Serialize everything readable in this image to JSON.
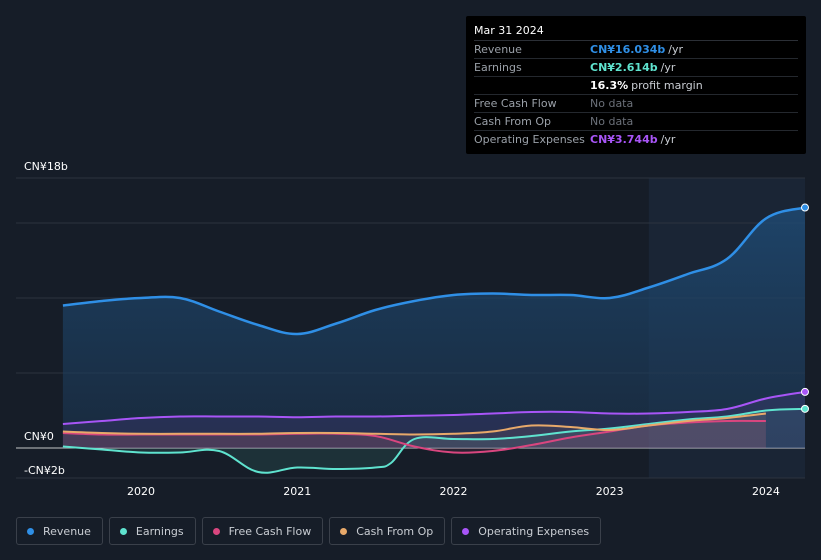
{
  "tooltip": {
    "date": "Mar 31 2024",
    "rows": [
      {
        "label": "Revenue",
        "value": "CN¥16.034b",
        "unit": "/yr",
        "color": "#2f8fe6"
      },
      {
        "label": "Earnings",
        "value": "CN¥2.614b",
        "unit": "/yr",
        "color": "#5fe3cf"
      },
      {
        "label": "",
        "value": "16.3%",
        "unit": "profit margin",
        "color": "#ffffff"
      },
      {
        "label": "Free Cash Flow",
        "value": "No data",
        "unit": "",
        "color": "#6b7079"
      },
      {
        "label": "Cash From Op",
        "value": "No data",
        "unit": "",
        "color": "#6b7079"
      },
      {
        "label": "Operating Expenses",
        "value": "CN¥3.744b",
        "unit": "/yr",
        "color": "#a855f7"
      }
    ]
  },
  "legend": [
    {
      "label": "Revenue",
      "color": "#2f8fe6"
    },
    {
      "label": "Earnings",
      "color": "#5fe3cf"
    },
    {
      "label": "Free Cash Flow",
      "color": "#d9467f"
    },
    {
      "label": "Cash From Op",
      "color": "#e8a96a"
    },
    {
      "label": "Operating Expenses",
      "color": "#a855f7"
    }
  ],
  "chart_data": {
    "type": "line",
    "ylim": [
      -2,
      18
    ],
    "y_tick_labels": [
      {
        "value": 18,
        "label": "CN¥18b"
      },
      {
        "value": 0,
        "label": "CN¥0"
      },
      {
        "value": -2,
        "label": "-CN¥2b"
      }
    ],
    "x_tick_labels": [
      {
        "value": 2020.0,
        "label": "2020"
      },
      {
        "value": 2021.0,
        "label": "2021"
      },
      {
        "value": 2022.0,
        "label": "2022"
      },
      {
        "value": 2023.0,
        "label": "2023"
      },
      {
        "value": 2024.0,
        "label": "2024"
      }
    ],
    "xlim": [
      2019.2,
      2024.25
    ],
    "highlight_start": 2023.25,
    "series": [
      {
        "name": "Revenue",
        "color": "#2f8fe6",
        "area": true,
        "x": [
          2019.5,
          2019.75,
          2020.0,
          2020.25,
          2020.5,
          2020.75,
          2021.0,
          2021.25,
          2021.5,
          2021.75,
          2022.0,
          2022.25,
          2022.5,
          2022.75,
          2023.0,
          2023.25,
          2023.5,
          2023.75,
          2024.0,
          2024.25
        ],
        "y": [
          9.5,
          9.8,
          10.0,
          10.0,
          9.1,
          8.2,
          7.6,
          8.3,
          9.2,
          9.8,
          10.2,
          10.3,
          10.2,
          10.2,
          10.0,
          10.7,
          11.6,
          12.6,
          15.3,
          16.03
        ]
      },
      {
        "name": "Earnings",
        "color": "#5fe3cf",
        "x": [
          2019.5,
          2019.75,
          2020.0,
          2020.25,
          2020.5,
          2020.75,
          2021.0,
          2021.25,
          2021.5,
          2021.6,
          2021.75,
          2022.0,
          2022.25,
          2022.5,
          2022.75,
          2023.0,
          2023.25,
          2023.5,
          2023.75,
          2024.0,
          2024.25
        ],
        "y": [
          0.1,
          -0.1,
          -0.3,
          -0.3,
          -0.2,
          -1.6,
          -1.3,
          -1.4,
          -1.3,
          -1.0,
          0.6,
          0.6,
          0.6,
          0.8,
          1.1,
          1.3,
          1.6,
          1.9,
          2.1,
          2.5,
          2.61
        ]
      },
      {
        "name": "Free Cash Flow",
        "color": "#d9467f",
        "x": [
          2019.5,
          2019.75,
          2020.0,
          2020.25,
          2020.5,
          2020.75,
          2021.0,
          2021.25,
          2021.5,
          2021.75,
          2022.0,
          2022.25,
          2022.5,
          2022.75,
          2023.0,
          2023.25,
          2023.5,
          2023.75,
          2024.0
        ],
        "y": [
          1.0,
          0.9,
          0.9,
          0.9,
          0.9,
          0.9,
          0.95,
          0.95,
          0.8,
          0.1,
          -0.3,
          -0.2,
          0.2,
          0.7,
          1.1,
          1.5,
          1.7,
          1.8,
          1.8
        ]
      },
      {
        "name": "Cash From Op",
        "color": "#e8a96a",
        "x": [
          2019.5,
          2019.75,
          2020.0,
          2020.25,
          2020.5,
          2020.75,
          2021.0,
          2021.25,
          2021.5,
          2021.75,
          2022.0,
          2022.25,
          2022.5,
          2022.75,
          2023.0,
          2023.25,
          2023.5,
          2023.75,
          2024.0
        ],
        "y": [
          1.1,
          1.0,
          0.95,
          0.95,
          0.95,
          0.95,
          1.0,
          1.0,
          0.95,
          0.9,
          0.95,
          1.1,
          1.5,
          1.4,
          1.2,
          1.5,
          1.8,
          2.0,
          2.3
        ]
      },
      {
        "name": "Operating Expenses",
        "color": "#a855f7",
        "x": [
          2019.5,
          2019.75,
          2020.0,
          2020.25,
          2020.5,
          2020.75,
          2021.0,
          2021.25,
          2021.5,
          2021.75,
          2022.0,
          2022.25,
          2022.5,
          2022.75,
          2023.0,
          2023.25,
          2023.5,
          2023.75,
          2024.0,
          2024.25
        ],
        "y": [
          1.6,
          1.8,
          2.0,
          2.1,
          2.1,
          2.1,
          2.05,
          2.1,
          2.1,
          2.15,
          2.2,
          2.3,
          2.4,
          2.4,
          2.3,
          2.3,
          2.4,
          2.6,
          3.3,
          3.74
        ]
      }
    ]
  }
}
